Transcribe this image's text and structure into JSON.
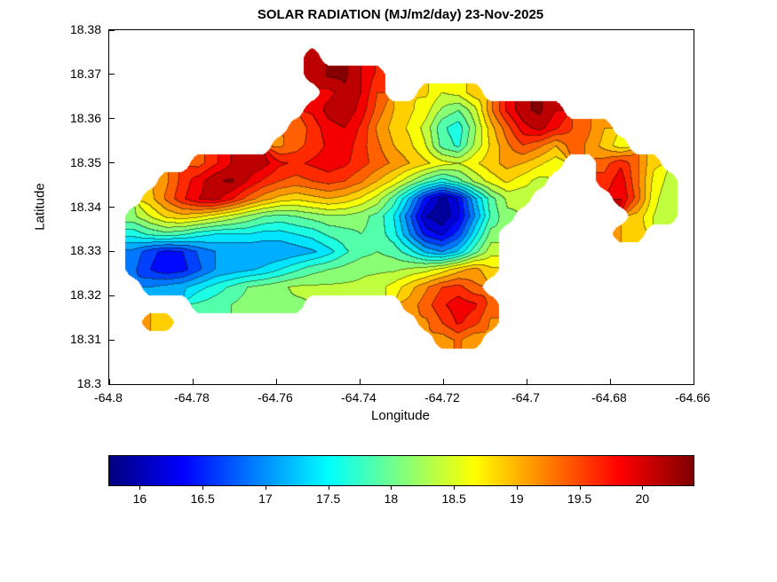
{
  "chart_data": {
    "type": "contour",
    "title": "SOLAR RADIATION (MJ/m2/day) 23-Nov-2025",
    "xlabel": "Longitude",
    "ylabel": "Latitude",
    "xlim": [
      -64.8,
      -64.66
    ],
    "ylim": [
      18.3,
      18.38
    ],
    "x_ticks": [
      -64.8,
      -64.78,
      -64.76,
      -64.74,
      -64.72,
      -64.7,
      -64.68,
      -64.66
    ],
    "x_tick_labels": [
      "-64.8",
      "-64.78",
      "-64.76",
      "-64.74",
      "-64.72",
      "-64.7",
      "-64.68",
      "-64.66"
    ],
    "y_ticks": [
      18.3,
      18.31,
      18.32,
      18.33,
      18.34,
      18.35,
      18.36,
      18.37,
      18.38
    ],
    "y_tick_labels": [
      "18.3",
      "18.31",
      "18.32",
      "18.33",
      "18.34",
      "18.35",
      "18.36",
      "18.37",
      "18.38"
    ],
    "colormap": "jet",
    "vmin": 15.75,
    "vmax": 20.4,
    "level_step": 0.25,
    "colorbar_ticks": [
      16,
      16.5,
      17,
      17.5,
      18,
      18.5,
      19,
      19.5,
      20
    ],
    "colorbar_tick_labels": [
      "16",
      "16.5",
      "17",
      "17.5",
      "18",
      "18.5",
      "19",
      "19.5",
      "20"
    ],
    "legend_position": "bottom-horizontal-colorbar",
    "grid": {
      "description": "Solar radiation (MJ/m2/day) sampled on a 36x20 lon-lat grid spanning xlim/ylim; rows ordered north to south; null = sea (outside island)",
      "ncols": 36,
      "nrows": 20,
      "values": [
        [
          null,
          null,
          null,
          null,
          null,
          null,
          null,
          null,
          null,
          null,
          null,
          null,
          null,
          null,
          null,
          null,
          null,
          null,
          null,
          null,
          null,
          null,
          null,
          null,
          null,
          null,
          null,
          null,
          null,
          null,
          null,
          null,
          null,
          null,
          null,
          null
        ],
        [
          null,
          null,
          null,
          null,
          null,
          null,
          null,
          null,
          null,
          null,
          null,
          null,
          20.2,
          null,
          null,
          null,
          null,
          null,
          null,
          null,
          null,
          null,
          null,
          null,
          null,
          null,
          null,
          null,
          null,
          null,
          null,
          null,
          null,
          null,
          null,
          null
        ],
        [
          null,
          null,
          null,
          null,
          null,
          null,
          null,
          null,
          null,
          null,
          null,
          null,
          20.0,
          20.3,
          20.3,
          20.0,
          19.7,
          null,
          null,
          null,
          null,
          null,
          null,
          null,
          null,
          null,
          null,
          null,
          null,
          null,
          null,
          null,
          null,
          null,
          null,
          null
        ],
        [
          null,
          null,
          null,
          null,
          null,
          null,
          null,
          null,
          null,
          null,
          null,
          null,
          null,
          19.9,
          20.2,
          20.0,
          19.5,
          null,
          null,
          18.8,
          18.5,
          18.6,
          18.9,
          null,
          null,
          null,
          null,
          null,
          null,
          null,
          null,
          null,
          null,
          null,
          null,
          null
        ],
        [
          null,
          null,
          null,
          null,
          null,
          null,
          null,
          null,
          null,
          null,
          null,
          null,
          19.8,
          20.1,
          20.2,
          19.9,
          19.4,
          19.0,
          18.8,
          18.6,
          18.2,
          18.0,
          18.4,
          19.2,
          19.8,
          20.2,
          20.3,
          20.0,
          null,
          null,
          null,
          null,
          null,
          null,
          null,
          null
        ],
        [
          null,
          null,
          null,
          null,
          null,
          null,
          null,
          null,
          null,
          null,
          null,
          19.3,
          19.6,
          19.9,
          20.0,
          19.7,
          19.2,
          18.9,
          18.7,
          18.4,
          17.8,
          17.6,
          18.2,
          18.9,
          19.4,
          19.9,
          20.1,
          19.8,
          19.5,
          19.3,
          19.0,
          null,
          null,
          null,
          null,
          null
        ],
        [
          null,
          null,
          null,
          null,
          null,
          null,
          null,
          null,
          null,
          null,
          19.2,
          19.4,
          19.6,
          19.8,
          19.9,
          19.6,
          19.3,
          19.0,
          18.8,
          18.5,
          17.9,
          17.7,
          18.3,
          18.8,
          19.2,
          19.5,
          19.3,
          19.0,
          19.4,
          19.2,
          18.9,
          18.6,
          null,
          null,
          null,
          null
        ],
        [
          null,
          null,
          null,
          null,
          null,
          19.4,
          19.7,
          20.0,
          20.2,
          20.1,
          19.8,
          19.7,
          19.8,
          19.9,
          19.8,
          19.6,
          19.4,
          19.2,
          19.0,
          18.8,
          18.6,
          18.5,
          18.7,
          18.9,
          19.1,
          19.0,
          18.8,
          18.6,
          null,
          null,
          19.4,
          19.7,
          19.3,
          18.8,
          null,
          null
        ],
        [
          null,
          null,
          null,
          19.2,
          19.6,
          19.9,
          20.2,
          20.3,
          20.0,
          19.7,
          19.5,
          19.4,
          19.5,
          19.6,
          19.5,
          19.3,
          19.0,
          18.7,
          18.3,
          17.9,
          17.6,
          17.9,
          18.3,
          18.6,
          18.8,
          18.6,
          18.4,
          null,
          null,
          null,
          19.6,
          19.9,
          19.3,
          18.7,
          18.4,
          null
        ],
        [
          null,
          null,
          18.9,
          19.3,
          19.7,
          20.0,
          20.1,
          19.8,
          19.4,
          19.1,
          18.9,
          18.8,
          18.9,
          19.0,
          18.9,
          18.7,
          18.4,
          17.9,
          17.2,
          16.4,
          15.9,
          16.3,
          17.2,
          17.9,
          18.3,
          18.3,
          null,
          null,
          null,
          null,
          null,
          20.0,
          19.4,
          18.6,
          18.3,
          null
        ],
        [
          null,
          18.2,
          18.5,
          18.8,
          18.9,
          18.8,
          18.6,
          18.4,
          18.2,
          18.0,
          17.9,
          18.0,
          18.1,
          18.2,
          18.2,
          18.1,
          17.9,
          17.5,
          16.8,
          16.0,
          15.8,
          16.2,
          17.0,
          17.8,
          18.2,
          null,
          null,
          null,
          null,
          null,
          null,
          null,
          18.9,
          18.5,
          18.3,
          null
        ],
        [
          null,
          17.6,
          17.8,
          17.9,
          17.8,
          17.6,
          17.5,
          17.5,
          17.5,
          17.4,
          17.4,
          17.5,
          17.6,
          17.8,
          17.9,
          18.0,
          17.9,
          17.6,
          17.0,
          16.4,
          16.2,
          16.6,
          17.4,
          18.1,
          null,
          null,
          null,
          null,
          null,
          null,
          null,
          19.0,
          18.8,
          null,
          null,
          null
        ],
        [
          null,
          16.9,
          16.6,
          16.4,
          16.5,
          16.8,
          17.0,
          17.0,
          17.0,
          17.0,
          17.0,
          17.1,
          17.2,
          17.4,
          17.7,
          17.9,
          18.0,
          17.9,
          17.6,
          17.2,
          17.0,
          17.3,
          17.9,
          18.4,
          null,
          null,
          null,
          null,
          null,
          null,
          null,
          null,
          null,
          null,
          null,
          null
        ],
        [
          null,
          16.8,
          16.5,
          16.3,
          16.4,
          16.7,
          17.0,
          17.1,
          17.2,
          17.3,
          17.5,
          17.7,
          17.9,
          18.0,
          18.1,
          18.2,
          18.2,
          18.2,
          18.3,
          18.4,
          18.6,
          18.9,
          19.1,
          18.8,
          null,
          null,
          null,
          null,
          null,
          null,
          null,
          null,
          null,
          null,
          null,
          null
        ],
        [
          null,
          null,
          17.0,
          17.1,
          17.2,
          17.4,
          17.6,
          17.8,
          18.0,
          18.1,
          18.2,
          18.3,
          18.3,
          18.3,
          18.3,
          18.3,
          18.4,
          18.6,
          18.9,
          19.2,
          19.5,
          19.6,
          19.3,
          null,
          null,
          null,
          null,
          null,
          null,
          null,
          null,
          null,
          null,
          null,
          null,
          null
        ],
        [
          null,
          null,
          null,
          null,
          null,
          17.8,
          17.9,
          18.0,
          18.1,
          18.1,
          18.2,
          18.2,
          null,
          null,
          null,
          null,
          null,
          null,
          19.1,
          19.4,
          19.7,
          19.9,
          19.8,
          19.4,
          null,
          null,
          null,
          null,
          null,
          null,
          null,
          null,
          null,
          null,
          null,
          null
        ],
        [
          null,
          null,
          19.0,
          18.8,
          null,
          null,
          null,
          null,
          null,
          null,
          null,
          null,
          null,
          null,
          null,
          null,
          null,
          null,
          null,
          19.2,
          19.5,
          19.8,
          19.6,
          19.2,
          null,
          null,
          null,
          null,
          null,
          null,
          null,
          null,
          null,
          null,
          null,
          null
        ],
        [
          null,
          null,
          null,
          null,
          null,
          null,
          null,
          null,
          null,
          null,
          null,
          null,
          null,
          null,
          null,
          null,
          null,
          null,
          null,
          null,
          19.1,
          19.3,
          19.0,
          null,
          null,
          null,
          null,
          null,
          null,
          null,
          null,
          null,
          null,
          null,
          null,
          null
        ],
        [
          null,
          null,
          null,
          null,
          null,
          null,
          null,
          null,
          null,
          null,
          null,
          null,
          null,
          null,
          null,
          null,
          null,
          null,
          null,
          null,
          null,
          null,
          null,
          null,
          null,
          null,
          null,
          null,
          null,
          null,
          null,
          null,
          null,
          null,
          null,
          null
        ],
        [
          null,
          null,
          null,
          null,
          null,
          null,
          null,
          null,
          null,
          null,
          null,
          null,
          null,
          null,
          null,
          null,
          null,
          null,
          null,
          null,
          null,
          null,
          null,
          null,
          null,
          null,
          null,
          null,
          null,
          null,
          null,
          null,
          null,
          null,
          null,
          null
        ]
      ]
    }
  }
}
